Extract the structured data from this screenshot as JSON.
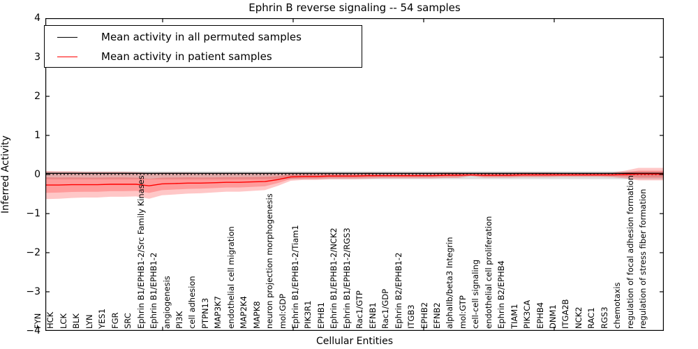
{
  "title": "Ephrin B reverse signaling -- 54 samples",
  "axes": {
    "ylabel": "Inferred Activity",
    "xlabel": "Cellular Entities",
    "yticks": [
      "4",
      "3",
      "2",
      "1",
      "0",
      "−1",
      "−2",
      "−3",
      "−4"
    ],
    "ylim": [
      -4,
      4
    ]
  },
  "legend": {
    "entries": [
      {
        "label": "Mean activity in all permuted samples",
        "color": "#000000"
      },
      {
        "label": "Mean activity in patient samples",
        "color": "#ff0000"
      }
    ]
  },
  "colors": {
    "patient_line": "#ff0000",
    "patient_band": "rgba(255,0,0,0.22)",
    "permuted_line": "#000000",
    "permuted_band": "rgba(0,0,0,0.13)",
    "zero_line": "#000000"
  },
  "chart_data": {
    "type": "line",
    "title": "Ephrin B reverse signaling -- 54 samples",
    "xlabel": "Cellular Entities",
    "ylabel": "Inferred Activity",
    "ylim": [
      -4,
      4
    ],
    "grid": false,
    "legend_position": "upper left",
    "categories": [
      "FYN",
      "HCK",
      "LCK",
      "BLK",
      "LYN",
      "YES1",
      "FGR",
      "SRC",
      "Ephrin B1/EPHB1-2/Src Family Kinases",
      "Ephrin B1/EPHB1-2",
      "angiogenesis",
      "PI3K",
      "cell adhesion",
      "PTPN13",
      "MAP3K7",
      "endothelial cell migration",
      "MAP2K4",
      "MAPK8",
      "neuron projection morphogenesis",
      "mol:GDP",
      "Ephrin B1/EPHB1-2/Tiam1",
      "PIK3R1",
      "EPHB1",
      "Ephrin B1/EPHB1-2/NCK2",
      "Ephrin B1/EPHB1-2/RGS3",
      "Rac1/GTP",
      "EFNB1",
      "Rac1/GDP",
      "Ephrin B2/EPHB1-2",
      "ITGB3",
      "EPHB2",
      "EFNB2",
      "alphaIIb/beta3 Integrin",
      "mol:GTP",
      "cell-cell signaling",
      "endothelial cell proliferation",
      "Ephrin B2/EPHB4",
      "TIAM1",
      "PIK3CA",
      "EPHB4",
      "DNM1",
      "ITGA2B",
      "NCK2",
      "RAC1",
      "RGS3",
      "chemotaxis",
      "regulation of focal adhesion formation",
      "regulation of stress fiber formation"
    ],
    "series": [
      {
        "name": "Mean activity in patient samples",
        "color": "#ff0000",
        "values": [
          -0.27,
          -0.27,
          -0.26,
          -0.26,
          -0.26,
          -0.25,
          -0.25,
          -0.25,
          -0.29,
          -0.24,
          -0.23,
          -0.22,
          -0.22,
          -0.21,
          -0.2,
          -0.2,
          -0.19,
          -0.18,
          -0.13,
          -0.06,
          -0.05,
          -0.05,
          -0.04,
          -0.04,
          -0.04,
          -0.03,
          -0.03,
          -0.03,
          -0.03,
          -0.03,
          -0.03,
          -0.02,
          -0.02,
          -0.01,
          -0.02,
          -0.02,
          -0.02,
          -0.01,
          -0.01,
          -0.01,
          -0.01,
          -0.01,
          -0.01,
          -0.01,
          -0.01,
          0.0,
          0.01,
          0.01
        ],
        "std": [
          0.36,
          0.35,
          0.34,
          0.33,
          0.33,
          0.32,
          0.32,
          0.31,
          0.33,
          0.29,
          0.28,
          0.27,
          0.26,
          0.25,
          0.24,
          0.24,
          0.23,
          0.22,
          0.16,
          0.1,
          0.09,
          0.09,
          0.08,
          0.08,
          0.08,
          0.08,
          0.07,
          0.07,
          0.07,
          0.07,
          0.07,
          0.07,
          0.07,
          0.03,
          0.06,
          0.06,
          0.06,
          0.06,
          0.06,
          0.06,
          0.05,
          0.05,
          0.05,
          0.05,
          0.06,
          0.1,
          0.16,
          0.16
        ]
      },
      {
        "name": "Mean activity in all permuted samples",
        "color": "#000000",
        "mean": 0.03,
        "band_upper": 0.08,
        "band_lower": -0.12
      }
    ],
    "zero_reference_line": 0.0
  }
}
